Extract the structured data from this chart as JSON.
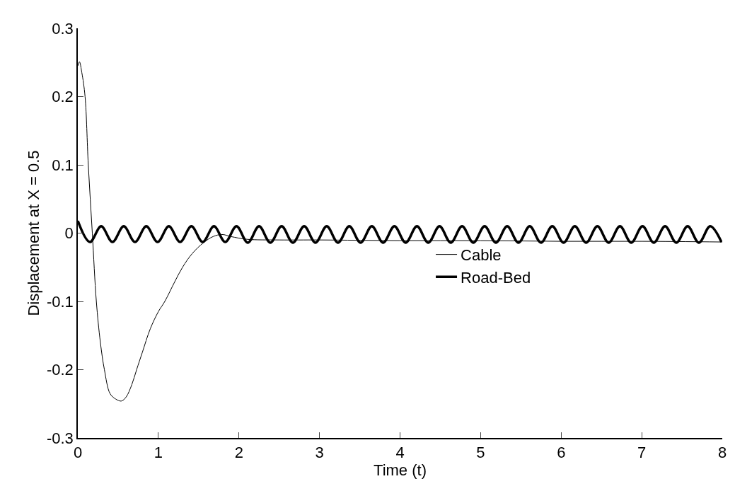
{
  "chart_data": {
    "type": "line",
    "xlabel": "Time (t)",
    "ylabel": "Displacement at X = 0.5",
    "xlim": [
      0,
      8
    ],
    "xticks": [
      0,
      1,
      2,
      3,
      4,
      5,
      6,
      7,
      8
    ],
    "ylim": [
      -0.3,
      0.3
    ],
    "yticks": [
      -0.3,
      -0.2,
      -0.1,
      0,
      0.1,
      0.2,
      0.3
    ],
    "grid": false,
    "legend": "right",
    "marker": "none",
    "line_style": "solid",
    "series": [
      {
        "name": "Cable",
        "color": "#000000",
        "x": [
          0,
          0.02,
          0.05,
          0.09,
          0.13,
          0.18,
          0.23,
          0.28,
          0.33,
          0.4,
          0.47,
          0.54,
          0.6,
          0.67,
          0.73,
          0.8,
          0.9,
          1.0,
          1.08,
          1.2,
          1.3,
          1.42,
          1.56,
          1.68,
          1.79,
          1.9,
          2.1,
          2.5,
          3,
          4,
          5,
          6,
          7,
          8
        ],
        "values": [
          0.245,
          0.251,
          0.235,
          0.2,
          0.1,
          0,
          -0.1,
          -0.16,
          -0.2,
          -0.235,
          -0.243,
          -0.246,
          -0.24,
          -0.222,
          -0.2,
          -0.175,
          -0.14,
          -0.115,
          -0.1,
          -0.072,
          -0.05,
          -0.03,
          -0.014,
          -0.005,
          -0.002,
          -0.005,
          -0.009,
          -0.01,
          -0.01,
          -0.011,
          -0.011,
          -0.012,
          -0.012,
          -0.013
        ]
      },
      {
        "name": "Road-Bed",
        "color": "#000000",
        "x": [
          0,
          0.15,
          0.29,
          0.43,
          0.57,
          0.71,
          0.85,
          0.99,
          1.13,
          1.27,
          1.41,
          1.55,
          1.69,
          1.83,
          1.97,
          2.11,
          2.25,
          2.39,
          2.53,
          2.67,
          2.81,
          2.95,
          3.09,
          3.23,
          3.37,
          3.51,
          3.65,
          3.79,
          3.93,
          4.07,
          4.21,
          4.35,
          4.49,
          4.63,
          4.77,
          4.91,
          5.05,
          5.19,
          5.33,
          5.47,
          5.61,
          5.75,
          5.89,
          6.03,
          6.17,
          6.31,
          6.45,
          6.59,
          6.73,
          6.87,
          7.01,
          7.15,
          7.29,
          7.43,
          7.57,
          7.71,
          7.85,
          7.99
        ],
        "values": [
          0.018,
          -0.013,
          0.01,
          -0.013,
          0.01,
          -0.013,
          0.01,
          -0.013,
          0.01,
          -0.013,
          0.01,
          -0.013,
          0.01,
          -0.013,
          0.01,
          -0.014,
          0.01,
          -0.014,
          0.01,
          -0.014,
          0.01,
          -0.014,
          0.01,
          -0.014,
          0.01,
          -0.014,
          0.01,
          -0.014,
          0.01,
          -0.014,
          0.01,
          -0.014,
          0.01,
          -0.014,
          0.01,
          -0.014,
          0.01,
          -0.014,
          0.01,
          -0.014,
          0.01,
          -0.014,
          0.01,
          -0.014,
          0.01,
          -0.014,
          0.01,
          -0.014,
          0.01,
          -0.014,
          0.01,
          -0.014,
          0.01,
          -0.014,
          0.01,
          -0.014,
          0.01,
          -0.013
        ]
      }
    ]
  }
}
